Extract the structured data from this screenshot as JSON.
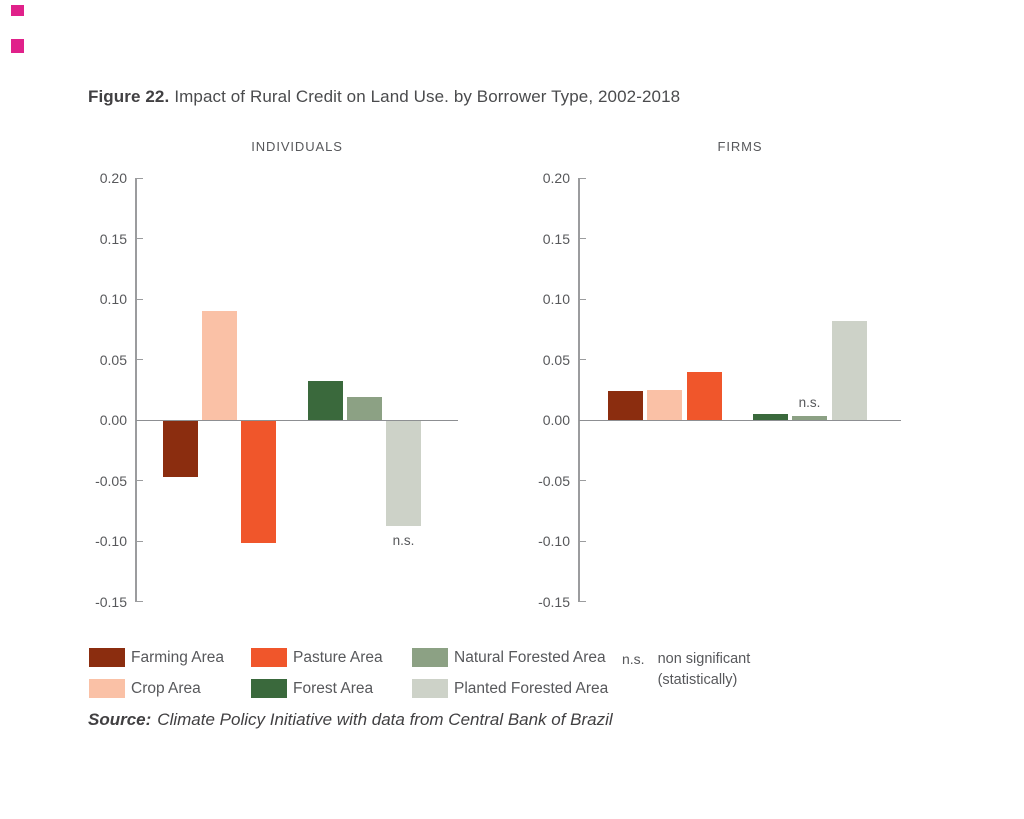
{
  "figure": {
    "title_prefix": "Figure 22.",
    "title_rest": "Impact of Rural Credit on Land Use. by Borrower Type, 2002-2018",
    "source_label": "Source:",
    "source_text": "Climate Policy Initiative with data from Central Bank of Brazil"
  },
  "colors": {
    "farming": "#8B2D0F",
    "crop": "#FAC1A6",
    "pasture": "#F0562B",
    "forest": "#3A693C",
    "natural_forested": "#8CA184",
    "planted_forested": "#CDD2C8",
    "axis": "#9B9C9E",
    "zero_line": "#8D8F92",
    "text": "#57585B",
    "corner_mark": "#E0218A"
  },
  "legend": {
    "items": [
      {
        "label": "Farming Area",
        "color_key": "farming"
      },
      {
        "label": "Crop Area",
        "color_key": "crop"
      },
      {
        "label": "Pasture Area",
        "color_key": "pasture"
      },
      {
        "label": "Forest Area",
        "color_key": "forest"
      },
      {
        "label": "Natural Forested Area",
        "color_key": "natural_forested"
      },
      {
        "label": "Planted Forested Area",
        "color_key": "planted_forested"
      }
    ],
    "ns_abbr": "n.s.",
    "ns_note_line1": "non significant",
    "ns_note_line2": "(statistically)"
  },
  "chart_data": [
    {
      "type": "bar",
      "title": "INDIVIDUALS",
      "categories": [
        "Farming Area",
        "Crop Area",
        "Pasture Area",
        "Forest Area",
        "Natural Forested Area",
        "Planted Forested Area"
      ],
      "values": [
        -0.046,
        0.09,
        -0.101,
        0.032,
        0.019,
        -0.087
      ],
      "color_keys": [
        "farming",
        "crop",
        "pasture",
        "forest",
        "natural_forested",
        "planted_forested"
      ],
      "ylim": [
        -0.15,
        0.2
      ],
      "yticks": [
        0.2,
        0.15,
        0.1,
        0.05,
        0,
        -0.05,
        -0.1,
        -0.15
      ],
      "ytick_labels": [
        "0.20",
        "0.15",
        "0.10",
        "0.05",
        "0.00",
        "-0.05",
        "-0.10",
        "-0.15"
      ],
      "grid": false,
      "legend_position": "bottom",
      "annotations": [
        {
          "text": "n.s.",
          "category": "Planted Forested Area",
          "bar_index": 5
        }
      ]
    },
    {
      "type": "bar",
      "title": "FIRMS",
      "categories": [
        "Farming Area",
        "Crop Area",
        "Pasture Area",
        "Forest Area",
        "Natural Forested Area",
        "Planted Forested Area"
      ],
      "values": [
        0.024,
        0.025,
        0.04,
        0.005,
        0.003,
        0.082
      ],
      "color_keys": [
        "farming",
        "crop",
        "pasture",
        "forest",
        "natural_forested",
        "planted_forested"
      ],
      "ylim": [
        -0.15,
        0.2
      ],
      "yticks": [
        0.2,
        0.15,
        0.1,
        0.05,
        0,
        -0.05,
        -0.1,
        -0.15
      ],
      "ytick_labels": [
        "0.20",
        "0.15",
        "0.10",
        "0.05",
        "0.00",
        "-0.05",
        "-0.10",
        "-0.15"
      ],
      "grid": false,
      "legend_position": "bottom",
      "annotations": [
        {
          "text": "n.s.",
          "category": "Natural Forested Area",
          "bar_index": 4
        }
      ]
    }
  ]
}
